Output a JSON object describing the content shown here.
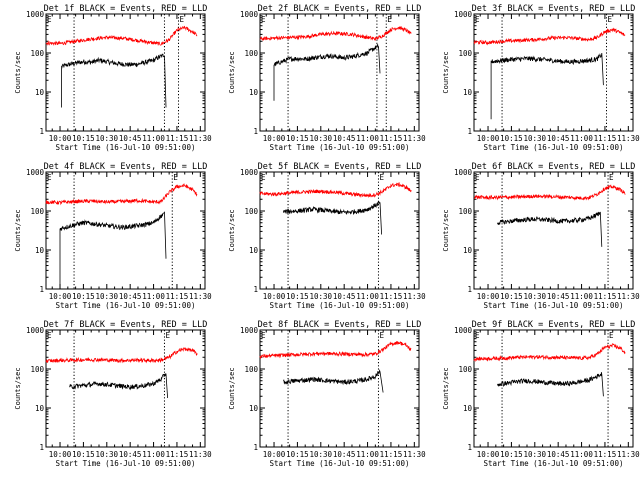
{
  "page": {
    "title_template": "Det {det} BLACK = Events, RED = LLD",
    "ylabel": "Counts/sec",
    "xlabel": "Start Time (16-Jul-10 09:51:00)",
    "x_ticks": [
      "10:00",
      "10:15",
      "10:30",
      "10:45",
      "11:00",
      "11:15",
      "11:30"
    ],
    "y_ticks": [
      "1",
      "10",
      "100",
      "1000"
    ],
    "marker_label": "E",
    "colors": {
      "events": "#000000",
      "lld": "#ff0000",
      "axes": "#000000"
    }
  },
  "chart_data": [
    {
      "type": "line",
      "det": "1f",
      "y_scale": "log",
      "ylim": [
        1,
        1000
      ],
      "xlim": [
        "09:51",
        "11:33"
      ],
      "vlines": [
        "10:09",
        "11:07",
        "11:16"
      ],
      "series": [
        {
          "name": "BLACK",
          "color": "#000000",
          "start": "10:01",
          "end": "11:08",
          "drop_start": 4,
          "x": [
            "10:01",
            "10:05",
            "10:10",
            "10:15",
            "10:20",
            "10:25",
            "10:30",
            "10:35",
            "10:40",
            "10:45",
            "10:50",
            "10:55",
            "11:00",
            "11:04",
            "11:07",
            "11:08"
          ],
          "y": [
            45,
            50,
            55,
            60,
            58,
            65,
            60,
            55,
            52,
            50,
            52,
            58,
            65,
            80,
            90,
            4
          ]
        },
        {
          "name": "RED",
          "color": "#ff0000",
          "start": "09:51",
          "end": "11:28",
          "x": [
            "09:51",
            "10:00",
            "10:10",
            "10:20",
            "10:30",
            "10:40",
            "10:50",
            "11:00",
            "11:05",
            "11:10",
            "11:15",
            "11:20",
            "11:25",
            "11:28"
          ],
          "y": [
            180,
            175,
            200,
            230,
            250,
            240,
            210,
            180,
            170,
            220,
            380,
            450,
            350,
            280
          ]
        }
      ]
    },
    {
      "type": "line",
      "det": "2f",
      "y_scale": "log",
      "ylim": [
        1,
        1000
      ],
      "xlim": [
        "09:51",
        "11:33"
      ],
      "vlines": [
        "10:09",
        "11:06",
        "11:12"
      ],
      "series": [
        {
          "name": "BLACK",
          "color": "#000000",
          "start": "10:00",
          "end": "11:08",
          "drop_start": 6,
          "x": [
            "10:00",
            "10:05",
            "10:10",
            "10:15",
            "10:20",
            "10:25",
            "10:30",
            "10:35",
            "10:40",
            "10:45",
            "10:50",
            "10:55",
            "11:00",
            "11:04",
            "11:07",
            "11:08"
          ],
          "y": [
            50,
            60,
            70,
            72,
            70,
            75,
            80,
            85,
            80,
            75,
            80,
            90,
            100,
            130,
            150,
            30
          ]
        },
        {
          "name": "RED",
          "color": "#ff0000",
          "start": "09:51",
          "end": "11:28",
          "x": [
            "09:51",
            "10:00",
            "10:10",
            "10:20",
            "10:30",
            "10:40",
            "10:50",
            "11:00",
            "11:05",
            "11:10",
            "11:15",
            "11:20",
            "11:25",
            "11:28"
          ],
          "y": [
            230,
            240,
            250,
            260,
            300,
            320,
            300,
            250,
            230,
            280,
            400,
            450,
            380,
            300
          ]
        }
      ]
    },
    {
      "type": "line",
      "det": "3f",
      "y_scale": "log",
      "ylim": [
        1,
        1000
      ],
      "xlim": [
        "09:51",
        "11:33"
      ],
      "vlines": [
        "10:09",
        "11:16"
      ],
      "series": [
        {
          "name": "BLACK",
          "color": "#000000",
          "start": "10:02",
          "end": "11:14",
          "drop_start": 2,
          "x": [
            "10:02",
            "10:05",
            "10:10",
            "10:15",
            "10:20",
            "10:25",
            "10:30",
            "10:35",
            "10:40",
            "10:45",
            "10:50",
            "10:55",
            "11:00",
            "11:05",
            "11:10",
            "11:13",
            "11:14"
          ],
          "y": [
            60,
            62,
            65,
            68,
            70,
            72,
            70,
            68,
            65,
            62,
            60,
            60,
            62,
            65,
            70,
            90,
            15
          ]
        },
        {
          "name": "RED",
          "color": "#ff0000",
          "start": "09:51",
          "end": "11:28",
          "x": [
            "09:51",
            "10:00",
            "10:10",
            "10:20",
            "10:30",
            "10:40",
            "10:50",
            "11:00",
            "11:05",
            "11:10",
            "11:15",
            "11:20",
            "11:25",
            "11:28"
          ],
          "y": [
            190,
            185,
            200,
            210,
            220,
            240,
            250,
            230,
            220,
            250,
            350,
            400,
            330,
            280
          ]
        }
      ]
    },
    {
      "type": "line",
      "det": "4f",
      "y_scale": "log",
      "ylim": [
        1,
        1000
      ],
      "xlim": [
        "09:51",
        "11:33"
      ],
      "vlines": [
        "10:09",
        "11:12"
      ],
      "series": [
        {
          "name": "BLACK",
          "color": "#000000",
          "start": "10:00",
          "end": "11:08",
          "drop_start": 1,
          "x": [
            "10:00",
            "10:05",
            "10:10",
            "10:15",
            "10:20",
            "10:25",
            "10:30",
            "10:35",
            "10:40",
            "10:45",
            "10:50",
            "10:55",
            "11:00",
            "11:04",
            "11:07",
            "11:08"
          ],
          "y": [
            35,
            40,
            45,
            50,
            48,
            45,
            42,
            40,
            38,
            40,
            42,
            45,
            50,
            70,
            85,
            6
          ]
        },
        {
          "name": "RED",
          "color": "#ff0000",
          "start": "09:51",
          "end": "11:28",
          "x": [
            "09:51",
            "10:00",
            "10:10",
            "10:20",
            "10:30",
            "10:40",
            "10:50",
            "11:00",
            "11:05",
            "11:10",
            "11:15",
            "11:20",
            "11:25",
            "11:28"
          ],
          "y": [
            170,
            165,
            175,
            180,
            170,
            175,
            185,
            170,
            175,
            300,
            420,
            450,
            350,
            260
          ]
        }
      ]
    },
    {
      "type": "line",
      "det": "5f",
      "y_scale": "log",
      "ylim": [
        1,
        1000
      ],
      "xlim": [
        "09:51",
        "11:33"
      ],
      "vlines": [
        "10:09",
        "11:07"
      ],
      "series": [
        {
          "name": "BLACK",
          "color": "#000000",
          "start": "10:06",
          "end": "11:09",
          "drop_start": null,
          "x": [
            "10:06",
            "10:10",
            "10:15",
            "10:20",
            "10:25",
            "10:30",
            "10:35",
            "10:40",
            "10:45",
            "10:50",
            "10:55",
            "11:00",
            "11:05",
            "11:08",
            "11:09"
          ],
          "y": [
            95,
            98,
            100,
            105,
            110,
            105,
            100,
            95,
            92,
            95,
            100,
            110,
            140,
            160,
            25
          ]
        },
        {
          "name": "RED",
          "color": "#ff0000",
          "start": "09:51",
          "end": "11:28",
          "x": [
            "09:51",
            "10:00",
            "10:10",
            "10:20",
            "10:30",
            "10:40",
            "10:50",
            "11:00",
            "11:05",
            "11:10",
            "11:15",
            "11:20",
            "11:25",
            "11:28"
          ],
          "y": [
            280,
            270,
            290,
            310,
            320,
            300,
            270,
            250,
            260,
            320,
            450,
            480,
            400,
            320
          ]
        }
      ]
    },
    {
      "type": "line",
      "det": "6f",
      "y_scale": "log",
      "ylim": [
        1,
        1000
      ],
      "xlim": [
        "09:51",
        "11:33"
      ],
      "vlines": [
        "10:09",
        "11:17"
      ],
      "series": [
        {
          "name": "BLACK",
          "color": "#000000",
          "start": "10:06",
          "end": "11:13",
          "drop_start": null,
          "x": [
            "10:06",
            "10:10",
            "10:15",
            "10:20",
            "10:25",
            "10:30",
            "10:35",
            "10:40",
            "10:45",
            "10:50",
            "10:55",
            "11:00",
            "11:05",
            "11:10",
            "11:12",
            "11:13"
          ],
          "y": [
            50,
            52,
            55,
            58,
            60,
            62,
            60,
            58,
            55,
            55,
            57,
            60,
            65,
            80,
            90,
            12
          ]
        },
        {
          "name": "RED",
          "color": "#ff0000",
          "start": "09:51",
          "end": "11:28",
          "x": [
            "09:51",
            "10:00",
            "10:10",
            "10:20",
            "10:30",
            "10:40",
            "10:50",
            "11:00",
            "11:05",
            "11:10",
            "11:15",
            "11:20",
            "11:25",
            "11:28"
          ],
          "y": [
            230,
            220,
            225,
            230,
            240,
            235,
            225,
            215,
            220,
            270,
            380,
            420,
            350,
            280
          ]
        }
      ]
    },
    {
      "type": "line",
      "det": "7f",
      "y_scale": "log",
      "ylim": [
        1,
        1000
      ],
      "xlim": [
        "09:51",
        "11:33"
      ],
      "vlines": [
        "10:09",
        "11:07"
      ],
      "series": [
        {
          "name": "BLACK",
          "color": "#000000",
          "start": "10:06",
          "end": "11:09",
          "drop_start": null,
          "x": [
            "10:06",
            "10:10",
            "10:15",
            "10:20",
            "10:25",
            "10:30",
            "10:35",
            "10:40",
            "10:45",
            "10:50",
            "10:55",
            "11:00",
            "11:05",
            "11:08",
            "11:09"
          ],
          "y": [
            35,
            36,
            38,
            40,
            42,
            40,
            38,
            36,
            35,
            36,
            38,
            42,
            55,
            80,
            18
          ]
        },
        {
          "name": "RED",
          "color": "#ff0000",
          "start": "09:51",
          "end": "11:28",
          "x": [
            "09:51",
            "10:00",
            "10:10",
            "10:20",
            "10:30",
            "10:40",
            "10:50",
            "11:00",
            "11:05",
            "11:10",
            "11:15",
            "11:20",
            "11:25",
            "11:28"
          ],
          "y": [
            160,
            165,
            170,
            175,
            170,
            165,
            170,
            165,
            170,
            200,
            280,
            330,
            300,
            240
          ]
        }
      ]
    },
    {
      "type": "line",
      "det": "8f",
      "y_scale": "log",
      "ylim": [
        1,
        1000
      ],
      "xlim": [
        "09:51",
        "11:33"
      ],
      "vlines": [
        "10:09",
        "11:07"
      ],
      "series": [
        {
          "name": "BLACK",
          "color": "#000000",
          "start": "10:06",
          "end": "11:10",
          "drop_start": null,
          "x": [
            "10:06",
            "10:10",
            "10:15",
            "10:20",
            "10:25",
            "10:30",
            "10:35",
            "10:40",
            "10:45",
            "10:50",
            "10:55",
            "11:00",
            "11:05",
            "11:08",
            "11:10"
          ],
          "y": [
            45,
            48,
            50,
            52,
            55,
            52,
            50,
            48,
            46,
            48,
            50,
            55,
            65,
            90,
            25
          ]
        },
        {
          "name": "RED",
          "color": "#ff0000",
          "start": "09:51",
          "end": "11:28",
          "x": [
            "09:51",
            "10:00",
            "10:10",
            "10:20",
            "10:30",
            "10:40",
            "10:50",
            "11:00",
            "11:05",
            "11:10",
            "11:15",
            "11:20",
            "11:25",
            "11:28"
          ],
          "y": [
            210,
            220,
            230,
            240,
            250,
            245,
            240,
            235,
            245,
            320,
            440,
            480,
            400,
            300
          ]
        }
      ]
    },
    {
      "type": "line",
      "det": "9f",
      "y_scale": "log",
      "ylim": [
        1,
        1000
      ],
      "xlim": [
        "09:51",
        "11:33"
      ],
      "vlines": [
        "10:09",
        "11:17"
      ],
      "series": [
        {
          "name": "BLACK",
          "color": "#000000",
          "start": "10:06",
          "end": "11:14",
          "drop_start": null,
          "x": [
            "10:06",
            "10:10",
            "10:15",
            "10:20",
            "10:25",
            "10:30",
            "10:35",
            "10:40",
            "10:45",
            "10:50",
            "10:55",
            "11:00",
            "11:05",
            "11:10",
            "11:13",
            "11:14"
          ],
          "y": [
            40,
            42,
            45,
            48,
            50,
            48,
            46,
            44,
            42,
            42,
            44,
            48,
            52,
            65,
            75,
            20
          ]
        },
        {
          "name": "RED",
          "color": "#ff0000",
          "start": "09:51",
          "end": "11:28",
          "x": [
            "09:51",
            "10:00",
            "10:10",
            "10:20",
            "10:30",
            "10:40",
            "10:50",
            "11:00",
            "11:05",
            "11:10",
            "11:15",
            "11:20",
            "11:25",
            "11:28"
          ],
          "y": [
            180,
            185,
            190,
            200,
            205,
            200,
            195,
            190,
            195,
            240,
            360,
            400,
            340,
            260
          ]
        }
      ]
    }
  ]
}
